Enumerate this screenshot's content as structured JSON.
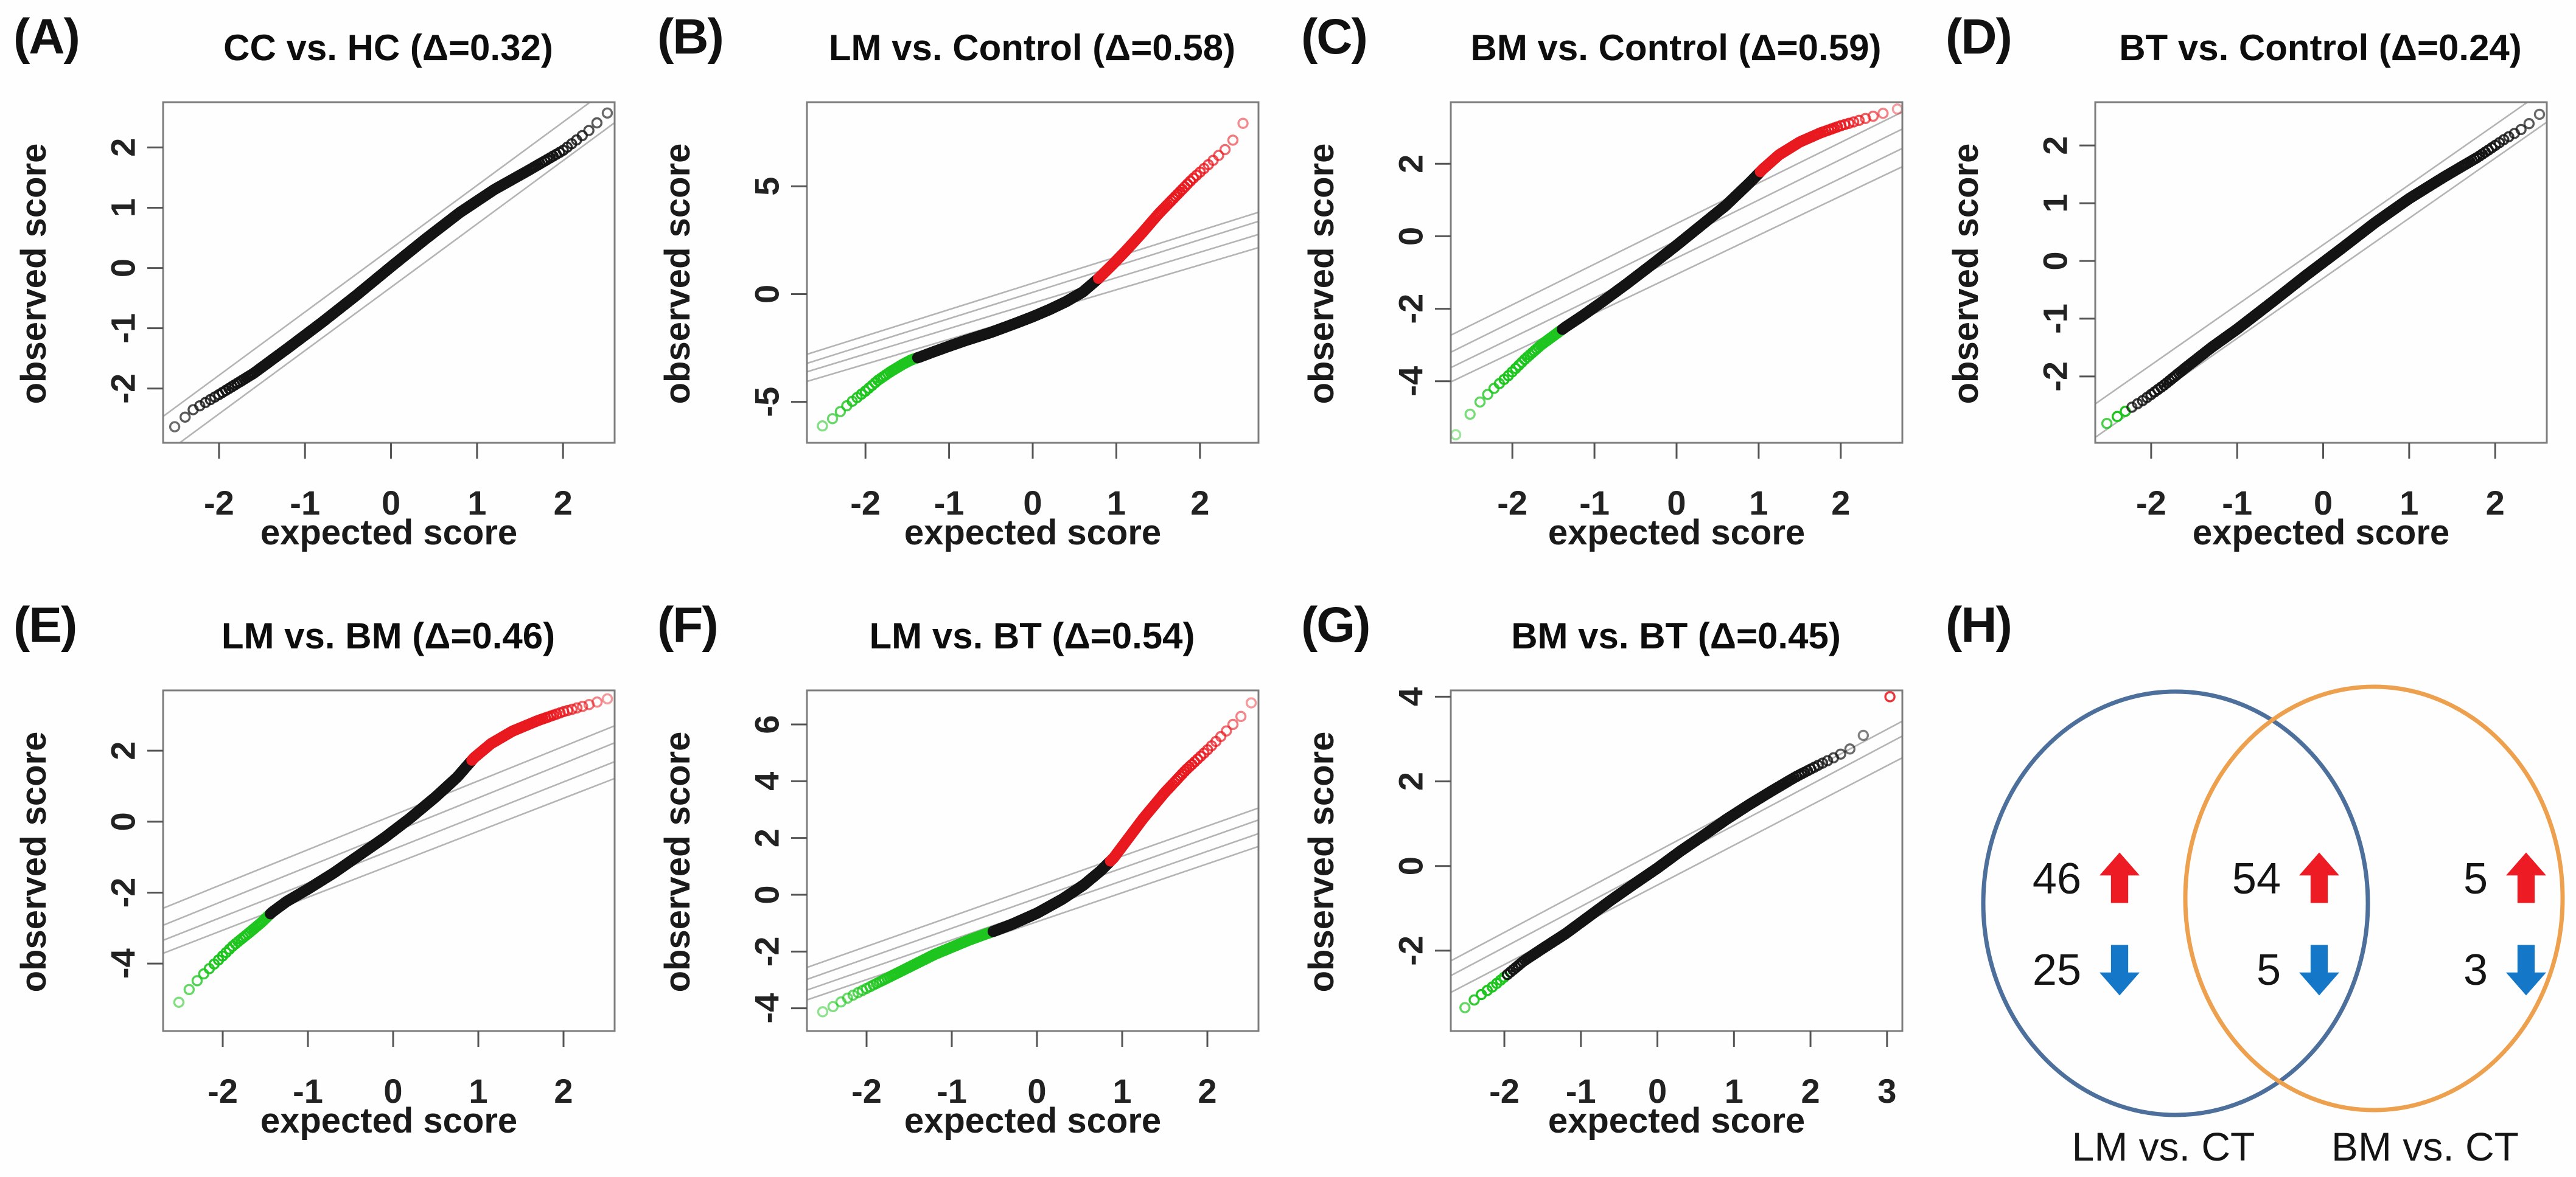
{
  "figure": {
    "description_title": "QQ-plot panels with Venn diagram",
    "shared_xlabel": "expected score",
    "shared_ylabel": "observed score"
  },
  "colors": {
    "point_black": "#141414",
    "point_red": "#e8191f",
    "point_green": "#1ec51e",
    "ref_line": "#b4b4b4",
    "box_border": "#7d7d7d",
    "tick_text": "#222222",
    "venn_left_circle": "#4d6f9b",
    "venn_right_circle": "#eda04e",
    "up_arrow": "#ed1c24",
    "down_arrow": "#1577c8"
  },
  "chart_data": [
    {
      "type": "scatter",
      "id": "A",
      "tag": "(A)",
      "title": "CC vs. HC (Δ=0.32)",
      "xlabel": "expected score",
      "ylabel": "observed score",
      "xlim": [
        -2.65,
        2.6
      ],
      "ylim": [
        -2.9,
        2.75
      ],
      "xticks": [
        -2,
        -1,
        0,
        1,
        2
      ],
      "yticks": [
        -2,
        -1,
        0,
        1,
        2
      ],
      "curve_x": [
        -2.55,
        -2.3,
        -2.0,
        -1.6,
        -1.2,
        -0.8,
        -0.4,
        0,
        0.4,
        0.8,
        1.2,
        1.6,
        2.0,
        2.3,
        2.5
      ],
      "curve_y": [
        -2.68,
        -2.35,
        -2.1,
        -1.75,
        -1.33,
        -0.9,
        -0.45,
        0.02,
        0.48,
        0.92,
        1.3,
        1.62,
        1.95,
        2.28,
        2.55
      ],
      "green_below": null,
      "red_above": null,
      "ref_lines": [
        {
          "m": 1.05,
          "b": 0.32
        },
        {
          "m": 1.05,
          "b": -0.32
        }
      ],
      "n_points": 420
    },
    {
      "type": "scatter",
      "id": "B",
      "tag": "(B)",
      "title": "LM vs. Control (Δ=0.58)",
      "xlabel": "expected score",
      "ylabel": "observed score",
      "xlim": [
        -2.7,
        2.7
      ],
      "ylim": [
        -6.9,
        8.9
      ],
      "xticks": [
        -2,
        -1,
        0,
        1,
        2
      ],
      "yticks": [
        -5,
        0,
        5
      ],
      "curve_x": [
        -2.6,
        -2.4,
        -2.2,
        -2.0,
        -1.85,
        -1.7,
        -1.55,
        -1.45,
        -1.35,
        -1.2,
        -1.0,
        -0.8,
        -0.5,
        -0.2,
        0,
        0.2,
        0.4,
        0.6,
        0.78,
        0.95,
        1.1,
        1.3,
        1.5,
        1.7,
        1.9,
        2.1,
        2.3,
        2.45,
        2.55
      ],
      "curve_y": [
        -6.35,
        -5.8,
        -5.1,
        -4.5,
        -4.0,
        -3.6,
        -3.25,
        -3.05,
        -2.92,
        -2.7,
        -2.42,
        -2.15,
        -1.78,
        -1.35,
        -1.05,
        -0.72,
        -0.35,
        0.1,
        0.7,
        1.35,
        1.95,
        2.8,
        3.7,
        4.5,
        5.3,
        6.0,
        6.7,
        7.4,
        8.2
      ],
      "green_below": -1.38,
      "red_above": 0.78,
      "ref_lines": [
        {
          "m": 1.22,
          "b": 0.5
        },
        {
          "m": 1.22,
          "b": 0.08
        },
        {
          "m": 1.18,
          "b": -0.42
        },
        {
          "m": 1.15,
          "b": -0.95
        }
      ],
      "n_points": 420
    },
    {
      "type": "scatter",
      "id": "C",
      "tag": "(C)",
      "title": "BM vs. Control (Δ=0.59)",
      "xlabel": "expected score",
      "ylabel": "observed score",
      "xlim": [
        -2.75,
        2.75
      ],
      "ylim": [
        -5.7,
        3.7
      ],
      "xticks": [
        -2,
        -1,
        0,
        1,
        2
      ],
      "yticks": [
        -4,
        -2,
        0,
        2
      ],
      "curve_x": [
        -2.62,
        -2.45,
        -2.25,
        -2.05,
        -1.85,
        -1.65,
        -1.5,
        -1.35,
        -1.15,
        -0.9,
        -0.6,
        -0.3,
        0,
        0.3,
        0.6,
        0.9,
        1.05,
        1.25,
        1.5,
        1.75,
        2.0,
        2.3,
        2.6
      ],
      "curve_y": [
        -5.25,
        -4.7,
        -4.25,
        -3.85,
        -3.4,
        -3.0,
        -2.75,
        -2.5,
        -2.2,
        -1.8,
        -1.3,
        -0.78,
        -0.25,
        0.3,
        0.85,
        1.5,
        1.85,
        2.25,
        2.6,
        2.85,
        3.05,
        3.25,
        3.45
      ],
      "green_below": -1.4,
      "red_above": 1.02,
      "ref_lines": [
        {
          "m": 1.12,
          "b": 0.35
        },
        {
          "m": 1.12,
          "b": -0.12
        },
        {
          "m": 1.1,
          "b": -0.6
        },
        {
          "m": 1.08,
          "b": -1.05
        }
      ],
      "n_points": 420
    },
    {
      "type": "scatter",
      "id": "D",
      "tag": "(D)",
      "title": "BT vs. Control (Δ=0.24)",
      "xlabel": "expected score",
      "ylabel": "observed score",
      "xlim": [
        -2.65,
        2.6
      ],
      "ylim": [
        -3.15,
        2.75
      ],
      "xticks": [
        -2,
        -1,
        0,
        1,
        2
      ],
      "yticks": [
        -2,
        -1,
        0,
        1,
        2
      ],
      "curve_x": [
        -2.55,
        -2.35,
        -2.1,
        -1.85,
        -1.6,
        -1.3,
        -1.0,
        -0.6,
        -0.2,
        0.2,
        0.6,
        1.0,
        1.4,
        1.8,
        2.1,
        2.35,
        2.5
      ],
      "curve_y": [
        -2.85,
        -2.65,
        -2.42,
        -2.15,
        -1.85,
        -1.5,
        -1.18,
        -0.72,
        -0.25,
        0.2,
        0.66,
        1.08,
        1.45,
        1.8,
        2.1,
        2.32,
        2.52
      ],
      "green_below": -2.25,
      "red_above": null,
      "ref_lines": [
        {
          "m": 1.04,
          "b": 0.28
        },
        {
          "m": 1.04,
          "b": -0.3
        }
      ],
      "n_points": 420
    },
    {
      "type": "scatter",
      "id": "E",
      "tag": "(E)",
      "title": "LM vs. BM (Δ=0.46)",
      "xlabel": "expected score",
      "ylabel": "observed score",
      "xlim": [
        -2.7,
        2.6
      ],
      "ylim": [
        -5.9,
        3.7
      ],
      "xticks": [
        -2,
        -1,
        0,
        1,
        2
      ],
      "yticks": [
        -4,
        -2,
        0,
        2
      ],
      "curve_x": [
        -2.6,
        -2.42,
        -2.25,
        -2.05,
        -1.88,
        -1.7,
        -1.55,
        -1.42,
        -1.25,
        -1.0,
        -0.7,
        -0.4,
        -0.1,
        0.2,
        0.5,
        0.75,
        0.95,
        1.15,
        1.4,
        1.7,
        2.0,
        2.3,
        2.5
      ],
      "curve_y": [
        -5.35,
        -4.8,
        -4.35,
        -3.9,
        -3.5,
        -3.15,
        -2.85,
        -2.55,
        -2.25,
        -1.9,
        -1.45,
        -0.95,
        -0.45,
        0.1,
        0.7,
        1.25,
        1.8,
        2.2,
        2.55,
        2.85,
        3.1,
        3.3,
        3.45
      ],
      "green_below": -1.44,
      "red_above": 0.92,
      "ref_lines": [
        {
          "m": 0.97,
          "b": 0.18
        },
        {
          "m": 0.97,
          "b": -0.3
        },
        {
          "m": 0.95,
          "b": -0.78
        },
        {
          "m": 0.93,
          "b": -1.2
        }
      ],
      "n_points": 420
    },
    {
      "type": "scatter",
      "id": "F",
      "tag": "(F)",
      "title": "LM vs. BT (Δ=0.54)",
      "xlabel": "expected score",
      "ylabel": "observed score",
      "xlim": [
        -2.7,
        2.6
      ],
      "ylim": [
        -4.8,
        7.2
      ],
      "xticks": [
        -2,
        -1,
        0,
        1,
        2
      ],
      "yticks": [
        -4,
        -2,
        0,
        2,
        4,
        6
      ],
      "curve_x": [
        -2.6,
        -2.4,
        -2.2,
        -2.0,
        -1.8,
        -1.6,
        -1.4,
        -1.2,
        -1.0,
        -0.8,
        -0.6,
        -0.52,
        -0.3,
        0,
        0.3,
        0.55,
        0.75,
        0.9,
        1.05,
        1.25,
        1.5,
        1.75,
        2.0,
        2.2,
        2.4,
        2.5
      ],
      "curve_y": [
        -4.25,
        -3.95,
        -3.6,
        -3.3,
        -3.0,
        -2.7,
        -2.4,
        -2.1,
        -1.85,
        -1.6,
        -1.38,
        -1.3,
        -1.05,
        -0.65,
        -0.15,
        0.35,
        0.85,
        1.3,
        1.9,
        2.7,
        3.6,
        4.4,
        5.1,
        5.7,
        6.3,
        6.7
      ],
      "green_below": -0.52,
      "red_above": 0.86,
      "ref_lines": [
        {
          "m": 1.06,
          "b": 0.3
        },
        {
          "m": 1.06,
          "b": -0.12
        },
        {
          "m": 1.04,
          "b": -0.55
        },
        {
          "m": 1.02,
          "b": -0.95
        }
      ],
      "n_points": 420
    },
    {
      "type": "scatter",
      "id": "G",
      "tag": "(G)",
      "title": "BM vs. BT (Δ=0.45)",
      "xlabel": "expected score",
      "ylabel": "observed score",
      "xlim": [
        -2.7,
        3.2
      ],
      "ylim": [
        -3.9,
        4.15
      ],
      "xticks": [
        -2,
        -1,
        0,
        1,
        2,
        3
      ],
      "yticks": [
        -2,
        0,
        2,
        4
      ],
      "curve_x": [
        -2.55,
        -2.35,
        -2.15,
        -1.95,
        -1.75,
        -1.5,
        -1.2,
        -0.9,
        -0.6,
        -0.3,
        0,
        0.3,
        0.6,
        0.9,
        1.2,
        1.5,
        1.8,
        2.1,
        2.35,
        2.6,
        3.0
      ],
      "curve_y": [
        -3.4,
        -3.1,
        -2.85,
        -2.55,
        -2.25,
        -1.95,
        -1.6,
        -1.2,
        -0.8,
        -0.42,
        -0.05,
        0.35,
        0.72,
        1.1,
        1.45,
        1.78,
        2.1,
        2.38,
        2.6,
        2.85,
        3.9
      ],
      "green_below": -1.98,
      "red_above": 2.8,
      "ref_lines": [
        {
          "m": 0.96,
          "b": 0.35
        },
        {
          "m": 0.96,
          "b": 0.0
        },
        {
          "m": 0.94,
          "b": -0.45
        }
      ],
      "n_points": 420
    },
    {
      "type": "venn",
      "id": "H",
      "tag": "(H)",
      "left_label": "LM vs. CT",
      "right_label": "BM vs. CT",
      "left_only": {
        "up": "46",
        "down": "25"
      },
      "intersection": {
        "up": "54",
        "down": "5"
      },
      "right_only": {
        "up": "5",
        "down": "3"
      }
    }
  ]
}
